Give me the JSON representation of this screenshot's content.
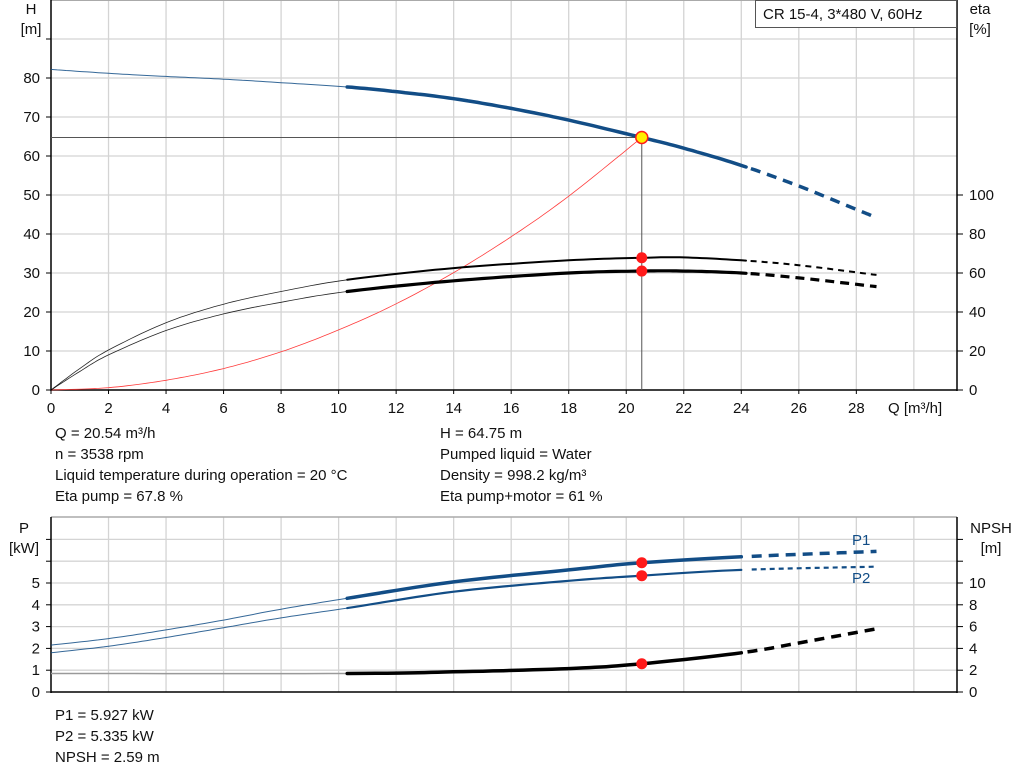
{
  "chart_data": [
    {
      "type": "line",
      "title": "CR 15-4, 3*480 V, 60Hz",
      "xlabel": "Q [m³/h]",
      "ylabel": [
        "H",
        "[m]"
      ],
      "y2label": [
        "eta",
        "[%]"
      ],
      "xlim": [
        0,
        31.5
      ],
      "ylim": [
        0,
        100
      ],
      "y2lim": [
        0,
        200
      ],
      "xticks": [
        0,
        2,
        4,
        6,
        8,
        10,
        12,
        14,
        16,
        18,
        20,
        22,
        24,
        26,
        28
      ],
      "yticks": [
        0,
        10,
        20,
        30,
        40,
        50,
        60,
        70,
        80
      ],
      "y2ticks": [
        0,
        20,
        40,
        60,
        80,
        100
      ],
      "grid": true,
      "solid_range": [
        10.3,
        24.2
      ],
      "series": [
        {
          "key": "H",
          "axis": "left",
          "color": "#124d86",
          "points": [
            [
              0,
              82.2
            ],
            [
              2,
              81.2
            ],
            [
              4,
              80.4
            ],
            [
              6,
              79.7
            ],
            [
              8,
              78.8
            ],
            [
              10.3,
              77.7
            ],
            [
              12,
              76.5
            ],
            [
              14,
              74.7
            ],
            [
              16,
              72.2
            ],
            [
              18,
              69.2
            ],
            [
              20.54,
              64.75
            ],
            [
              22,
              62
            ],
            [
              24,
              57.6
            ],
            [
              26,
              52.3
            ],
            [
              28,
              46.3
            ],
            [
              28.7,
              44.2
            ]
          ]
        },
        {
          "key": "eta_pump",
          "axis": "right",
          "color": "#000000",
          "points": [
            [
              0,
              0
            ],
            [
              1,
              11
            ],
            [
              2,
              20.5
            ],
            [
              4,
              34.5
            ],
            [
              6,
              44
            ],
            [
              8,
              50.5
            ],
            [
              10.3,
              56.5
            ],
            [
              14,
              62.5
            ],
            [
              18,
              66.5
            ],
            [
              20.54,
              67.8
            ],
            [
              22,
              68
            ],
            [
              24,
              66.5
            ],
            [
              26,
              64
            ],
            [
              28.7,
              59
            ]
          ]
        },
        {
          "key": "eta_pump_motor",
          "axis": "right",
          "color": "#000000",
          "points": [
            [
              0,
              0
            ],
            [
              1,
              9.5
            ],
            [
              2,
              18
            ],
            [
              4,
              30.5
            ],
            [
              6,
              39
            ],
            [
              8,
              45
            ],
            [
              10.3,
              50.5
            ],
            [
              14,
              56
            ],
            [
              18,
              60
            ],
            [
              20.54,
              61
            ],
            [
              22,
              61
            ],
            [
              24,
              60
            ],
            [
              26,
              57.5
            ],
            [
              28.7,
              53
            ]
          ]
        },
        {
          "key": "system_curve",
          "axis": "left",
          "color": "#ff3b3b",
          "points": [
            [
              0,
              0
            ],
            [
              2,
              0.6
            ],
            [
              4,
              2.5
            ],
            [
              6,
              5.5
            ],
            [
              8,
              9.8
            ],
            [
              10,
              15.4
            ],
            [
              12,
              22.1
            ],
            [
              14,
              30.1
            ],
            [
              16,
              39.3
            ],
            [
              18,
              49.7
            ],
            [
              20.54,
              64.75
            ]
          ]
        }
      ],
      "duty_point": {
        "Q": 20.54,
        "H": 64.75,
        "eta_pump": 67.8,
        "eta_pump_motor": 61
      }
    },
    {
      "type": "line",
      "ylabel": [
        "P",
        "[kW]"
      ],
      "y2label": [
        "NPSH",
        "[m]"
      ],
      "xlim": [
        0,
        31.5
      ],
      "ylim": [
        0,
        8
      ],
      "y2lim": [
        0,
        16
      ],
      "yticks": [
        0,
        1,
        2,
        3,
        4,
        5
      ],
      "y2ticks": [
        0,
        2,
        4,
        6,
        8,
        10
      ],
      "grid": true,
      "solid_range": [
        10.3,
        24.2
      ],
      "series": [
        {
          "key": "P1",
          "name": "P1",
          "axis": "left",
          "color": "#124d86",
          "points": [
            [
              0,
              2.15
            ],
            [
              2,
              2.45
            ],
            [
              4,
              2.85
            ],
            [
              6,
              3.3
            ],
            [
              8,
              3.8
            ],
            [
              10.3,
              4.3
            ],
            [
              14,
              5.05
            ],
            [
              18,
              5.6
            ],
            [
              20.54,
              5.93
            ],
            [
              24,
              6.2
            ],
            [
              28.7,
              6.45
            ]
          ]
        },
        {
          "key": "P2",
          "name": "P2",
          "axis": "left",
          "color": "#124d86",
          "points": [
            [
              0,
              1.8
            ],
            [
              2,
              2.1
            ],
            [
              4,
              2.5
            ],
            [
              6,
              2.95
            ],
            [
              8,
              3.4
            ],
            [
              10.3,
              3.85
            ],
            [
              14,
              4.6
            ],
            [
              18,
              5.1
            ],
            [
              20.54,
              5.335
            ],
            [
              24,
              5.6
            ],
            [
              28.7,
              5.75
            ]
          ]
        },
        {
          "key": "NPSH",
          "axis": "right",
          "color": "#000000",
          "points": [
            [
              0,
              1.7
            ],
            [
              10.3,
              1.7
            ],
            [
              14,
              1.85
            ],
            [
              18,
              2.15
            ],
            [
              20.54,
              2.59
            ],
            [
              24,
              3.6
            ],
            [
              26,
              4.5
            ],
            [
              28.7,
              5.8
            ]
          ]
        }
      ],
      "duty_point": {
        "Q": 20.54,
        "P1": 5.927,
        "P2": 5.335,
        "NPSH": 2.59
      }
    }
  ],
  "info_top": {
    "left": [
      "Q = 20.54 m³/h",
      "n = 3538 rpm",
      "Liquid temperature during operation = 20 °C",
      "Eta pump = 67.8 %"
    ],
    "right": [
      "H = 64.75 m",
      "Pumped liquid = Water",
      "Density = 998.2 kg/m³",
      "Eta pump+motor = 61 %"
    ]
  },
  "info_bottom": [
    "P1 = 5.927 kW",
    "P2 = 5.335 kW",
    "NPSH = 2.59 m"
  ]
}
